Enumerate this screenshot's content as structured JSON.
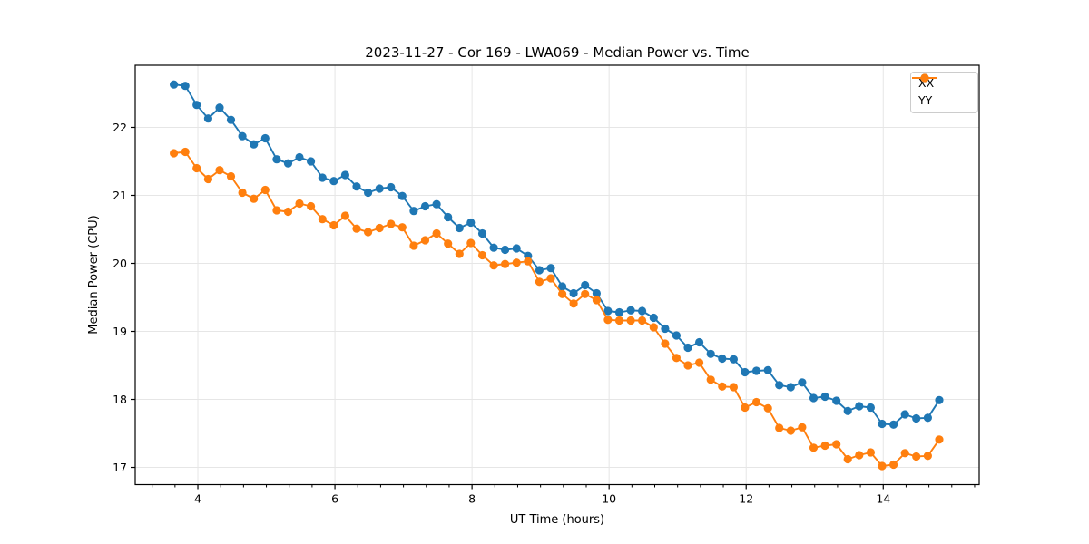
{
  "chart_data": {
    "type": "line",
    "title": "2023-11-27 - Cor 169 - LWA069 - Median Power vs. Time",
    "xlabel": "UT Time (hours)",
    "ylabel": "Median Power (CPU)",
    "background": "#ffffff",
    "grid": true,
    "grid_color": "#e6e6e6",
    "spine_color": "#000000",
    "xlim": [
      3.086,
      15.4
    ],
    "ylim": [
      16.747,
      22.913
    ],
    "x_major_ticks": [
      4,
      6,
      8,
      10,
      12,
      14
    ],
    "x_minor_tick_step": 0.33333,
    "y_major_ticks": [
      17,
      18,
      19,
      20,
      21,
      22
    ],
    "legend_position": "upper right",
    "x": [
      3.65,
      3.817,
      3.983,
      4.15,
      4.317,
      4.483,
      4.65,
      4.817,
      4.983,
      5.15,
      5.317,
      5.483,
      5.65,
      5.817,
      5.983,
      6.15,
      6.317,
      6.483,
      6.65,
      6.817,
      6.983,
      7.15,
      7.317,
      7.483,
      7.65,
      7.817,
      7.983,
      8.15,
      8.317,
      8.483,
      8.65,
      8.817,
      8.983,
      9.15,
      9.317,
      9.483,
      9.65,
      9.817,
      9.983,
      10.15,
      10.317,
      10.483,
      10.65,
      10.817,
      10.983,
      11.15,
      11.317,
      11.483,
      11.65,
      11.817,
      11.983,
      12.15,
      12.317,
      12.483,
      12.65,
      12.817,
      12.983,
      13.15,
      13.317,
      13.483,
      13.65,
      13.817,
      13.983,
      14.15,
      14.317,
      14.483,
      14.65,
      14.817
    ],
    "series": [
      {
        "name": "XX",
        "color": "#1f77b4",
        "values": [
          22.63,
          22.61,
          22.33,
          22.13,
          22.29,
          22.11,
          21.87,
          21.75,
          21.84,
          21.53,
          21.47,
          21.56,
          21.5,
          21.26,
          21.21,
          21.3,
          21.13,
          21.04,
          21.1,
          21.12,
          20.99,
          20.77,
          20.84,
          20.87,
          20.68,
          20.52,
          20.6,
          20.44,
          20.23,
          20.2,
          20.22,
          20.11,
          19.9,
          19.93,
          19.66,
          19.56,
          19.68,
          19.56,
          19.3,
          19.28,
          19.31,
          19.3,
          19.2,
          19.04,
          18.94,
          18.76,
          18.84,
          18.67,
          18.6,
          18.59,
          18.4,
          18.42,
          18.43,
          18.21,
          18.18,
          18.25,
          18.02,
          18.04,
          17.98,
          17.83,
          17.9,
          17.88,
          17.64,
          17.63,
          17.78,
          17.72,
          17.73,
          17.99
        ]
      },
      {
        "name": "YY",
        "color": "#ff7f0e",
        "values": [
          21.62,
          21.64,
          21.4,
          21.24,
          21.37,
          21.28,
          21.04,
          20.95,
          21.08,
          20.78,
          20.76,
          20.88,
          20.84,
          20.65,
          20.56,
          20.7,
          20.51,
          20.46,
          20.52,
          20.58,
          20.53,
          20.26,
          20.34,
          20.44,
          20.29,
          20.14,
          20.3,
          20.12,
          19.97,
          19.99,
          20.01,
          20.03,
          19.73,
          19.78,
          19.55,
          19.41,
          19.55,
          19.46,
          19.17,
          19.16,
          19.16,
          19.16,
          19.06,
          18.82,
          18.61,
          18.5,
          18.54,
          18.29,
          18.19,
          18.18,
          17.88,
          17.96,
          17.87,
          17.58,
          17.54,
          17.59,
          17.29,
          17.32,
          17.34,
          17.12,
          17.18,
          17.22,
          17.02,
          17.04,
          17.21,
          17.16,
          17.17,
          17.41
        ]
      }
    ]
  }
}
